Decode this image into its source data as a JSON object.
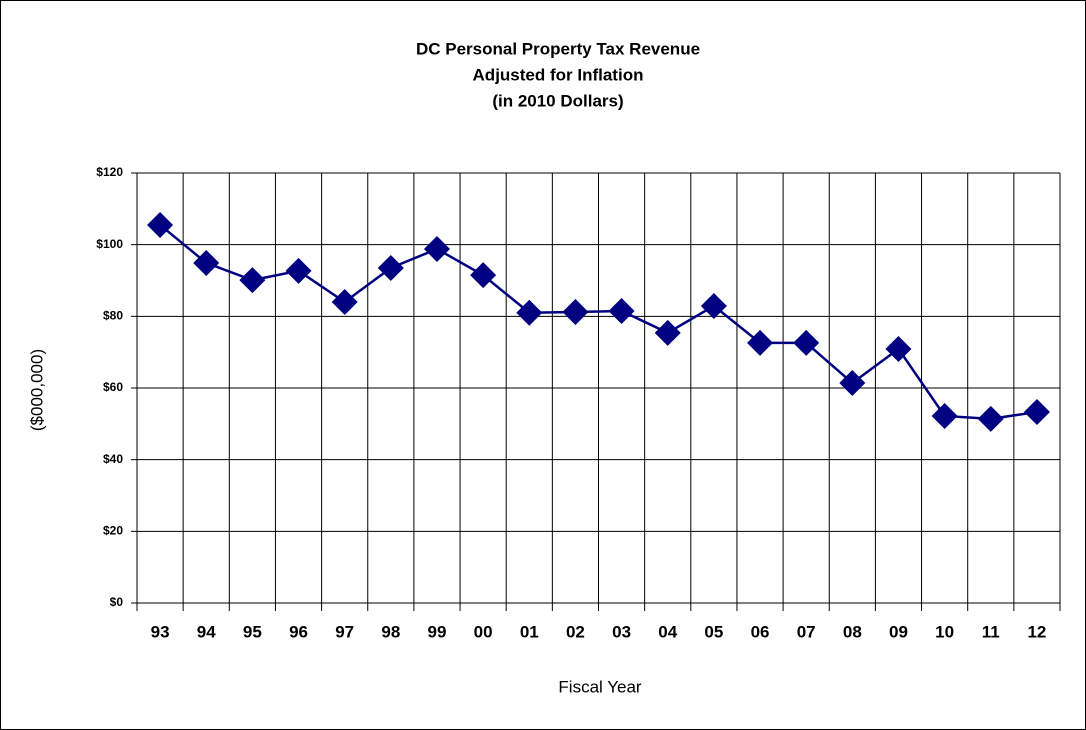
{
  "chart_data": {
    "type": "line",
    "title": [
      "DC Personal Property Tax Revenue",
      "Adjusted for Inflation",
      "(in 2010 Dollars)"
    ],
    "y_label": "($000,000)",
    "x_label": "Fiscal Year",
    "categories": [
      "93",
      "94",
      "95",
      "96",
      "97",
      "98",
      "99",
      "00",
      "01",
      "02",
      "03",
      "04",
      "05",
      "06",
      "07",
      "08",
      "09",
      "10",
      "11",
      "12"
    ],
    "series": [
      {
        "name": "Personal Property Tax Revenue",
        "color": "#000080",
        "values": [
          105.5,
          94.9,
          90.1,
          92.7,
          84.0,
          93.5,
          98.8,
          91.5,
          81.0,
          81.2,
          81.5,
          75.4,
          82.9,
          72.6,
          72.6,
          61.4,
          70.9,
          52.2,
          51.4,
          53.3
        ]
      }
    ],
    "ylim": [
      0,
      120
    ],
    "yticks": [
      {
        "value": 0,
        "label": "$0"
      },
      {
        "value": 20,
        "label": "$20"
      },
      {
        "value": 40,
        "label": "$40"
      },
      {
        "value": 60,
        "label": "$60"
      },
      {
        "value": 80,
        "label": "$80"
      },
      {
        "value": 100,
        "label": "$100"
      },
      {
        "value": 120,
        "label": "$120"
      }
    ],
    "grid": true,
    "legend": false
  }
}
